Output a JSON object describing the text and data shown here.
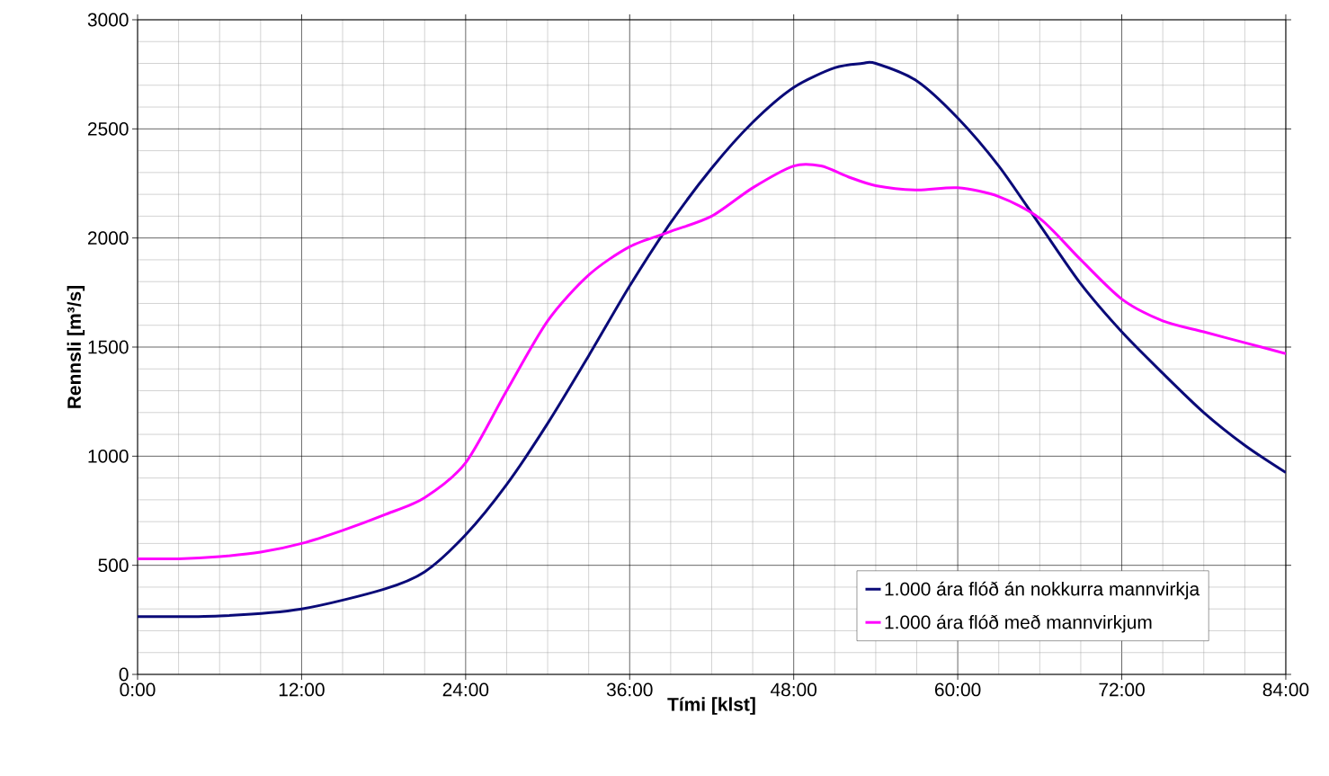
{
  "chart_data": {
    "type": "line",
    "xlabel": "Tími [klst]",
    "ylabel": "Rennsli [m³/s]",
    "xlim": [
      0,
      84
    ],
    "ylim": [
      0,
      3000
    ],
    "xticks": [
      {
        "value": 0,
        "label": "0:00"
      },
      {
        "value": 12,
        "label": "12:00"
      },
      {
        "value": 24,
        "label": "24:00"
      },
      {
        "value": 36,
        "label": "36:00"
      },
      {
        "value": 48,
        "label": "48:00"
      },
      {
        "value": 60,
        "label": "60:00"
      },
      {
        "value": 72,
        "label": "72:00"
      },
      {
        "value": 84,
        "label": "84:00"
      }
    ],
    "yticks": [
      0,
      500,
      1000,
      1500,
      2000,
      2500,
      3000
    ],
    "grid": true,
    "legend": "bottom right",
    "marker": "none",
    "line_style": "solid",
    "series": [
      {
        "name": "1.000 ára flóð án nokkurra mannvirkja",
        "color": "#0a0a78",
        "x": [
          0,
          6,
          12,
          18,
          21,
          24,
          27,
          30,
          33,
          36,
          39,
          42,
          45,
          48,
          51,
          53,
          54,
          57,
          60,
          63,
          66,
          69,
          72,
          75,
          78,
          81,
          84
        ],
        "values": [
          265,
          268,
          300,
          390,
          470,
          640,
          870,
          1150,
          1460,
          1780,
          2070,
          2320,
          2530,
          2690,
          2780,
          2800,
          2800,
          2720,
          2550,
          2330,
          2060,
          1790,
          1570,
          1380,
          1200,
          1050,
          925
        ]
      },
      {
        "name": "1.000 ára flóð með mannvirkjum",
        "color": "#ff00ff",
        "x": [
          0,
          3,
          6,
          9,
          12,
          15,
          18,
          21,
          24,
          27,
          30,
          33,
          36,
          39,
          42,
          45,
          48,
          50,
          52,
          54,
          57,
          60,
          63,
          66,
          69,
          72,
          75,
          78,
          81,
          84
        ],
        "values": [
          530,
          530,
          540,
          560,
          600,
          660,
          730,
          810,
          970,
          1300,
          1620,
          1830,
          1960,
          2030,
          2100,
          2230,
          2330,
          2330,
          2280,
          2240,
          2220,
          2230,
          2190,
          2090,
          1900,
          1720,
          1620,
          1570,
          1520,
          1470
        ]
      }
    ]
  }
}
